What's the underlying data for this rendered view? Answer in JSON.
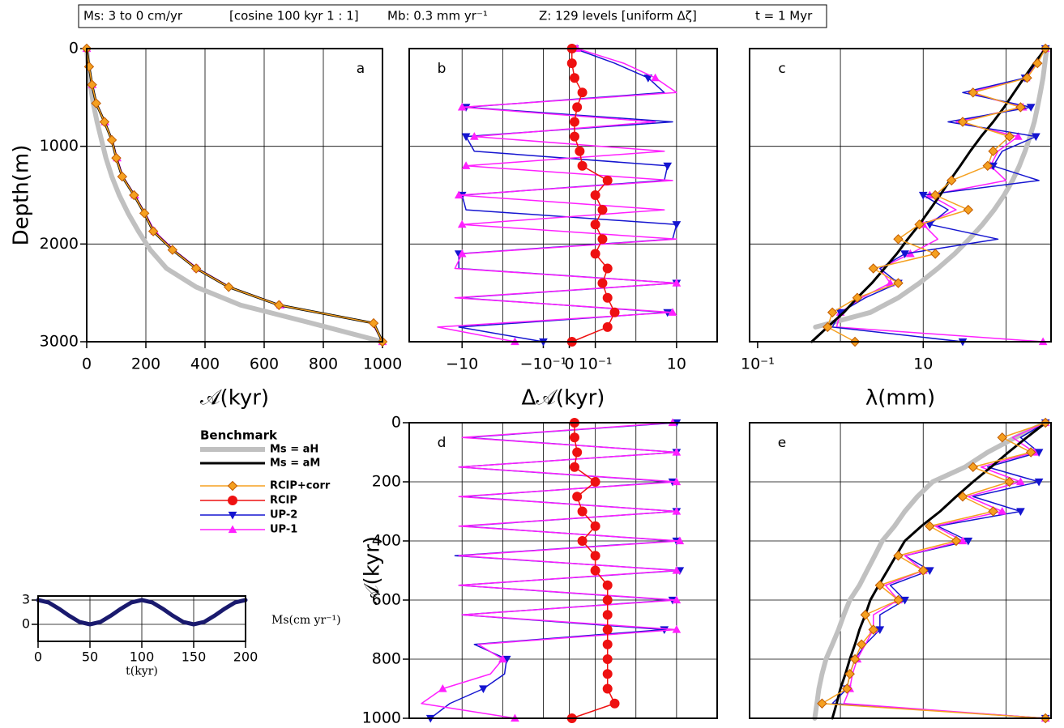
{
  "header": {
    "fields": [
      "Ms: 3 to 0 cm/yr",
      "[cosine 100 kyr 1 : 1]",
      "Mb: 0.3 mm yr⁻¹",
      "Z: 129 levels [uniform Δζ]",
      "t = 1 Myr"
    ]
  },
  "legend": {
    "title": "Benchmark",
    "entries": [
      {
        "name": "Ms = aH",
        "color": "#c0c0c0",
        "marker": "none"
      },
      {
        "name": "Ms = aM",
        "color": "#000000",
        "marker": "none"
      },
      {
        "name": "RCIP+corr",
        "color": "#f5a020",
        "marker": "diamond"
      },
      {
        "name": "RCIP",
        "color": "#ee1111",
        "marker": "circle"
      },
      {
        "name": "UP-2",
        "color": "#1515d0",
        "marker": "down"
      },
      {
        "name": "UP-1",
        "color": "#ff20ff",
        "marker": "up"
      }
    ]
  },
  "chart_data": [
    {
      "type": "line",
      "label": "a",
      "xlabel": "𝒜(kyr)",
      "ylabel": "Depth(m)",
      "xscale": "linear",
      "xlim": [
        0,
        1000
      ],
      "ylim": [
        0,
        3000
      ],
      "yreverse": true,
      "grid": true,
      "xticks": [
        0,
        200,
        400,
        600,
        800,
        1000
      ],
      "yticks": [
        0,
        1000,
        2000,
        3000
      ],
      "y": [
        0,
        185,
        370,
        560,
        750,
        935,
        1120,
        1310,
        1500,
        1685,
        1870,
        2060,
        2250,
        2440,
        2625,
        2810,
        3000
      ],
      "series": [
        {
          "color": "#c0c0c0",
          "width": 6,
          "marker": "none",
          "values": [
            0,
            5,
            12,
            22,
            35,
            50,
            65,
            85,
            110,
            140,
            175,
            215,
            270,
            370,
            520,
            760,
            1000
          ]
        },
        {
          "color": "#ff20ff",
          "width": 1.5,
          "marker": "up",
          "values": [
            0,
            9,
            19,
            34,
            62,
            87,
            103,
            123,
            163,
            198,
            230,
            295,
            375,
            485,
            655,
            965,
            1000
          ]
        },
        {
          "color": "#000000",
          "width": 3,
          "marker": "none",
          "values": [
            0,
            8,
            18,
            32,
            60,
            85,
            100,
            120,
            160,
            195,
            225,
            290,
            370,
            480,
            650,
            970,
            1000
          ]
        },
        {
          "color": "#f5a020",
          "width": 1.5,
          "marker": "diamond",
          "values": [
            0,
            8,
            18,
            32,
            60,
            85,
            100,
            120,
            160,
            195,
            225,
            290,
            370,
            480,
            650,
            970,
            1000
          ]
        }
      ]
    },
    {
      "type": "line",
      "label": "b",
      "xlabel": "Δ𝒜(kyr)",
      "xscale": "symlog",
      "linthresh": 0.1,
      "xlim": [
        -200,
        100
      ],
      "ylim": [
        0,
        3000
      ],
      "yreverse": true,
      "xticks": [
        {
          "value": -10,
          "label": "−10"
        },
        {
          "value": -0.1,
          "label": "−10⁻¹"
        },
        0,
        {
          "value": 0.1,
          "label": "10⁻¹"
        },
        10
      ],
      "xgrid": [
        -10,
        -1,
        -0.1,
        0,
        0.1,
        1,
        10
      ],
      "ygrid": [
        1000,
        2000
      ],
      "y": [
        0,
        150,
        300,
        450,
        600,
        750,
        900,
        1050,
        1200,
        1350,
        1500,
        1650,
        1800,
        1950,
        2100,
        2250,
        2400,
        2550,
        2700,
        2850,
        3000
      ],
      "series": [
        {
          "color": "#1515d0",
          "width": 1.5,
          "marker": "down",
          "values": [
            0.02,
            0.3,
            2,
            5,
            -8,
            8,
            -8,
            -5,
            6,
            5,
            -10,
            -8,
            10,
            8,
            -12,
            -12,
            10,
            -12,
            6,
            -12,
            -0.1
          ]
        },
        {
          "color": "#ff20ff",
          "width": 1.5,
          "marker": "up",
          "values": [
            0.03,
            0.5,
            3,
            10,
            -10,
            3,
            -5,
            5,
            -8,
            8,
            -12,
            5,
            -10,
            10,
            -10,
            -15,
            10,
            -15,
            8,
            -40,
            -0.5
          ]
        },
        {
          "color": "#ee1111",
          "width": 1.5,
          "marker": "circle",
          "values": [
            0.01,
            0.01,
            0.02,
            0.05,
            0.03,
            0.02,
            0.02,
            0.04,
            0.05,
            0.2,
            0.1,
            0.15,
            0.1,
            0.15,
            0.1,
            0.2,
            0.15,
            0.2,
            0.3,
            0.2,
            0.01
          ]
        }
      ]
    },
    {
      "type": "line",
      "label": "c",
      "xlabel": "λ(mm)",
      "xscale": "log",
      "xlim": [
        0.08,
        350
      ],
      "ylim": [
        0,
        3000
      ],
      "yreverse": true,
      "xticks": [
        {
          "value": 0.1,
          "label": "10⁻¹"
        },
        10
      ],
      "xgrid": [
        1,
        10,
        100
      ],
      "ygrid": [
        1000,
        2000
      ],
      "y": [
        0,
        150,
        300,
        450,
        600,
        750,
        900,
        1050,
        1200,
        1350,
        1500,
        1650,
        1800,
        1950,
        2100,
        2250,
        2400,
        2550,
        2700,
        2850,
        3000
      ],
      "series": [
        {
          "color": "#c0c0c0",
          "width": 6,
          "marker": "none",
          "values": [
            310,
            295,
            280,
            260,
            240,
            220,
            195,
            170,
            145,
            120,
            95,
            72,
            52,
            36,
            24,
            15,
            9,
            5,
            2.3,
            0.5,
            null
          ]
        },
        {
          "color": "#ff20ff",
          "width": 1.5,
          "marker": "up",
          "values": [
            300,
            235,
            175,
            35,
            160,
            25,
            140,
            80,
            65,
            100,
            12,
            25,
            10,
            15,
            7,
            3,
            4,
            1.8,
            1,
            0.9,
            280
          ]
        },
        {
          "color": "#1515d0",
          "width": 1.5,
          "marker": "down",
          "values": [
            300,
            230,
            170,
            30,
            200,
            20,
            230,
            90,
            70,
            250,
            10,
            20,
            12,
            80,
            6,
            3,
            5,
            2,
            1,
            0.8,
            30
          ]
        },
        {
          "color": "#000000",
          "width": 3,
          "marker": "none",
          "values": [
            300,
            220,
            165,
            125,
            95,
            70,
            50,
            37,
            28,
            21,
            16,
            12,
            9,
            6.5,
            4.8,
            3.4,
            2.4,
            1.6,
            1.1,
            0.7,
            0.45
          ]
        },
        {
          "color": "#f5a020",
          "width": 1.5,
          "marker": "diamond",
          "values": [
            300,
            240,
            180,
            40,
            150,
            30,
            110,
            70,
            60,
            22,
            14,
            35,
            9,
            5,
            14,
            2.5,
            5,
            1.6,
            0.8,
            0.7,
            1.5
          ]
        }
      ]
    },
    {
      "type": "line",
      "label": "d",
      "ylabel": "𝒜(kyr)",
      "xscale": "symlog",
      "linthresh": 0.1,
      "xlim": [
        -200,
        100
      ],
      "ylim": [
        0,
        1000
      ],
      "yreverse": true,
      "yticks": [
        0,
        200,
        400,
        600,
        800,
        1000
      ],
      "xgrid": [
        -10,
        -1,
        -0.1,
        0,
        0.1,
        1,
        10
      ],
      "ygrid": [
        200,
        400,
        600,
        800
      ],
      "y": [
        0,
        50,
        100,
        150,
        200,
        250,
        300,
        350,
        400,
        450,
        500,
        550,
        600,
        650,
        700,
        750,
        800,
        850,
        900,
        950,
        1000
      ],
      "series": [
        {
          "color": "#1515d0",
          "width": 1.5,
          "marker": "down",
          "values": [
            10,
            -8,
            10,
            -12,
            8,
            -10,
            10,
            -10,
            10,
            -15,
            12,
            -12,
            8,
            -10,
            5,
            -5,
            -0.8,
            -0.9,
            -3,
            -20,
            -60
          ]
        },
        {
          "color": "#ff20ff",
          "width": 1.5,
          "marker": "up",
          "values": [
            8,
            -10,
            10,
            -12,
            10,
            -12,
            10,
            -12,
            12,
            -12,
            10,
            -12,
            10,
            -10,
            10,
            -4,
            -1,
            -2,
            -30,
            -100,
            -0.5
          ]
        },
        {
          "color": "#ee1111",
          "width": 1.5,
          "marker": "circle",
          "values": [
            0.02,
            0.02,
            0.03,
            0.02,
            0.1,
            0.03,
            0.05,
            0.1,
            0.05,
            0.1,
            0.1,
            0.2,
            0.2,
            0.2,
            0.2,
            0.2,
            0.2,
            0.2,
            0.2,
            0.3,
            0.01
          ]
        }
      ]
    },
    {
      "type": "line",
      "label": "e",
      "xscale": "log",
      "xlim": [
        0.08,
        350
      ],
      "ylim": [
        0,
        1000
      ],
      "yreverse": true,
      "xgrid": [
        1,
        10,
        100
      ],
      "ygrid": [
        200,
        400,
        600,
        800
      ],
      "y": [
        0,
        50,
        100,
        150,
        200,
        250,
        300,
        350,
        400,
        450,
        500,
        550,
        600,
        650,
        700,
        750,
        800,
        850,
        900,
        950,
        1000
      ],
      "series": [
        {
          "color": "#c0c0c0",
          "width": 6,
          "marker": "none",
          "values": [
            300,
            130,
            60,
            32,
            13,
            8.5,
            6,
            4.5,
            3.2,
            2.6,
            2.1,
            1.7,
            1.3,
            1.1,
            0.95,
            0.8,
            0.67,
            0.6,
            0.55,
            0.52,
            0.49
          ]
        },
        {
          "color": "#1515d0",
          "width": 1.5,
          "marker": "down",
          "values": [
            300,
            150,
            250,
            60,
            250,
            40,
            150,
            15,
            35,
            6,
            12,
            4,
            6,
            3,
            3,
            2,
            1.5,
            1.3,
            1.2,
            0.8,
            300
          ]
        },
        {
          "color": "#ff20ff",
          "width": 1.5,
          "marker": "up",
          "values": [
            300,
            120,
            220,
            50,
            150,
            35,
            90,
            14,
            30,
            6,
            10,
            3.5,
            5,
            2.5,
            2.5,
            2,
            1.6,
            1.4,
            1.3,
            1.1,
            300
          ]
        },
        {
          "color": "#000000",
          "width": 3,
          "marker": "none",
          "values": [
            302,
            178,
            107,
            66,
            40,
            25,
            16,
            9.5,
            6,
            4.7,
            3.7,
            2.9,
            2.3,
            2,
            1.7,
            1.5,
            1.3,
            1.15,
            1,
            0.9,
            0.8
          ]
        },
        {
          "color": "#f5a020",
          "width": 1.5,
          "marker": "diamond",
          "values": [
            300,
            90,
            200,
            40,
            110,
            30,
            70,
            12,
            25,
            5,
            10,
            3,
            5,
            2,
            2.5,
            1.8,
            1.5,
            1.3,
            1.2,
            0.6,
            300
          ]
        }
      ]
    },
    {
      "type": "line",
      "xlabel": "t(kyr)",
      "ylabel": "Ms(cm yr⁻¹)",
      "xscale": "linear",
      "xlim": [
        0,
        200
      ],
      "ylim": [
        -2.1,
        3.5
      ],
      "grid": true,
      "xticks": [
        0,
        50,
        100,
        150,
        200
      ],
      "yticks": [
        0,
        3
      ],
      "x": [
        0,
        10,
        20,
        30,
        40,
        50,
        60,
        70,
        80,
        90,
        100,
        110,
        120,
        130,
        140,
        150,
        160,
        170,
        180,
        190,
        200
      ],
      "series": [
        {
          "color": "#1a1a6e",
          "width": 5,
          "marker": "none",
          "values": [
            3,
            2.71,
            1.94,
            1.06,
            0.29,
            0,
            0.29,
            1.06,
            1.94,
            2.71,
            3,
            2.71,
            1.94,
            1.06,
            0.29,
            0,
            0.29,
            1.06,
            1.94,
            2.71,
            3
          ]
        }
      ]
    }
  ]
}
